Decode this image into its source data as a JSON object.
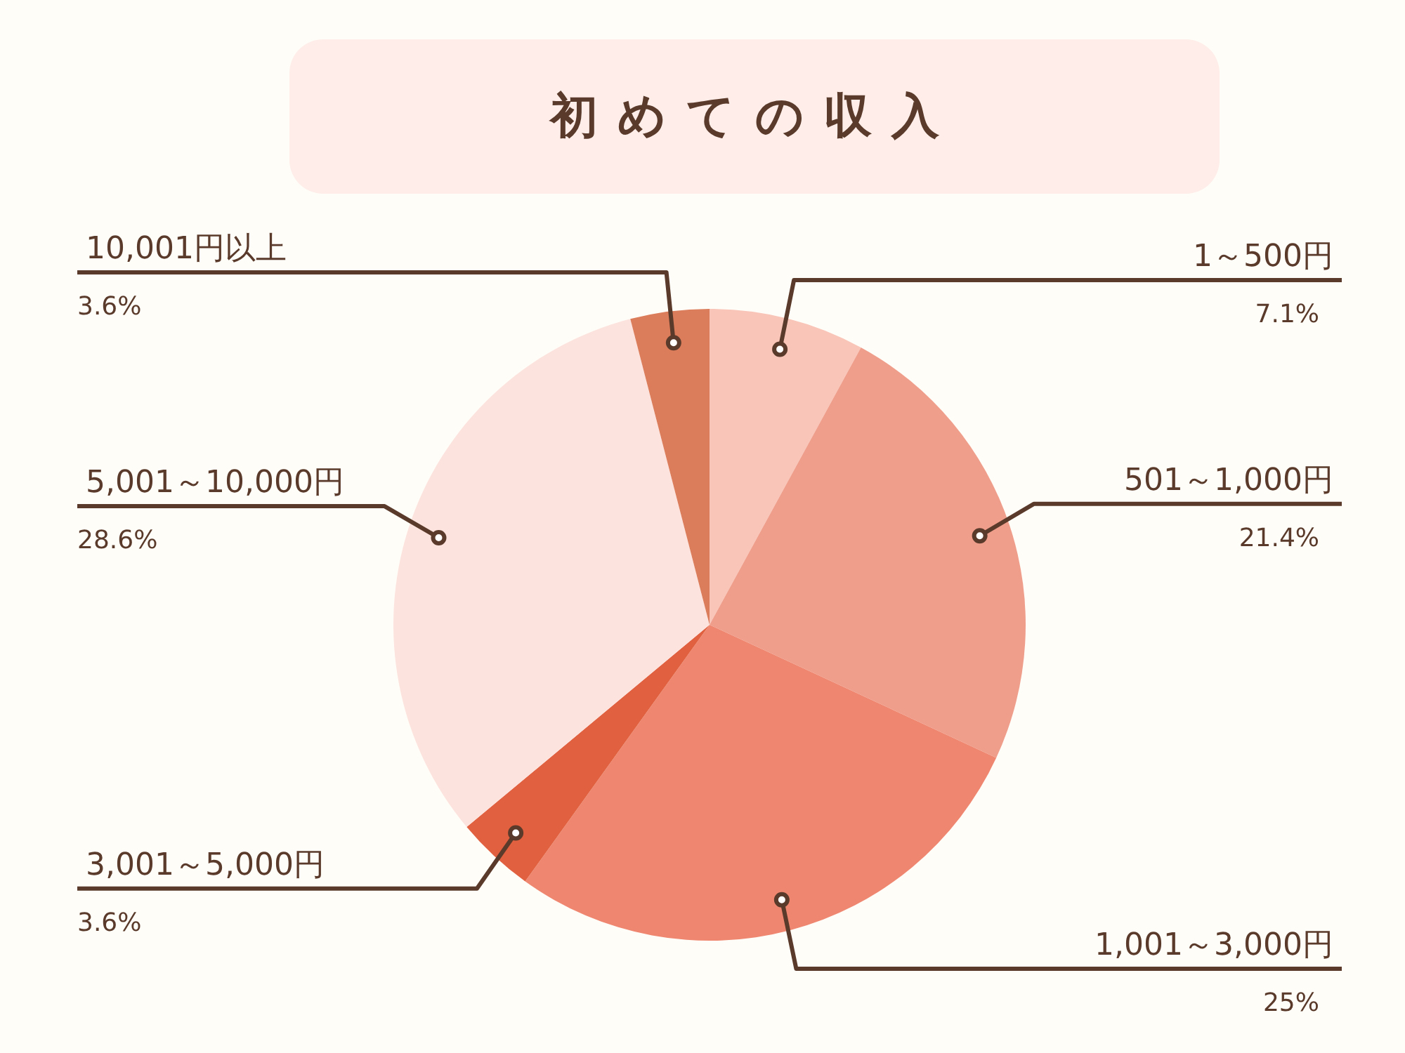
{
  "chart_data": {
    "type": "pie",
    "title": "初めての収入",
    "categories": [
      "1～500円",
      "501～1,000円",
      "1,001～3,000円",
      "3,001～5,000円",
      "5,001～10,000円",
      "10,001円以上"
    ],
    "values": [
      7.1,
      21.4,
      25,
      3.6,
      28.6,
      3.6
    ],
    "value_labels": [
      "7.1%",
      "21.4%",
      "25%",
      "3.6%",
      "28.6%",
      "3.6%"
    ],
    "colors": [
      "#f9c5b8",
      "#f09e8c",
      "#ef8770",
      "#e0603f",
      "#fde3dd",
      "#db7c5a"
    ],
    "legend": false
  }
}
